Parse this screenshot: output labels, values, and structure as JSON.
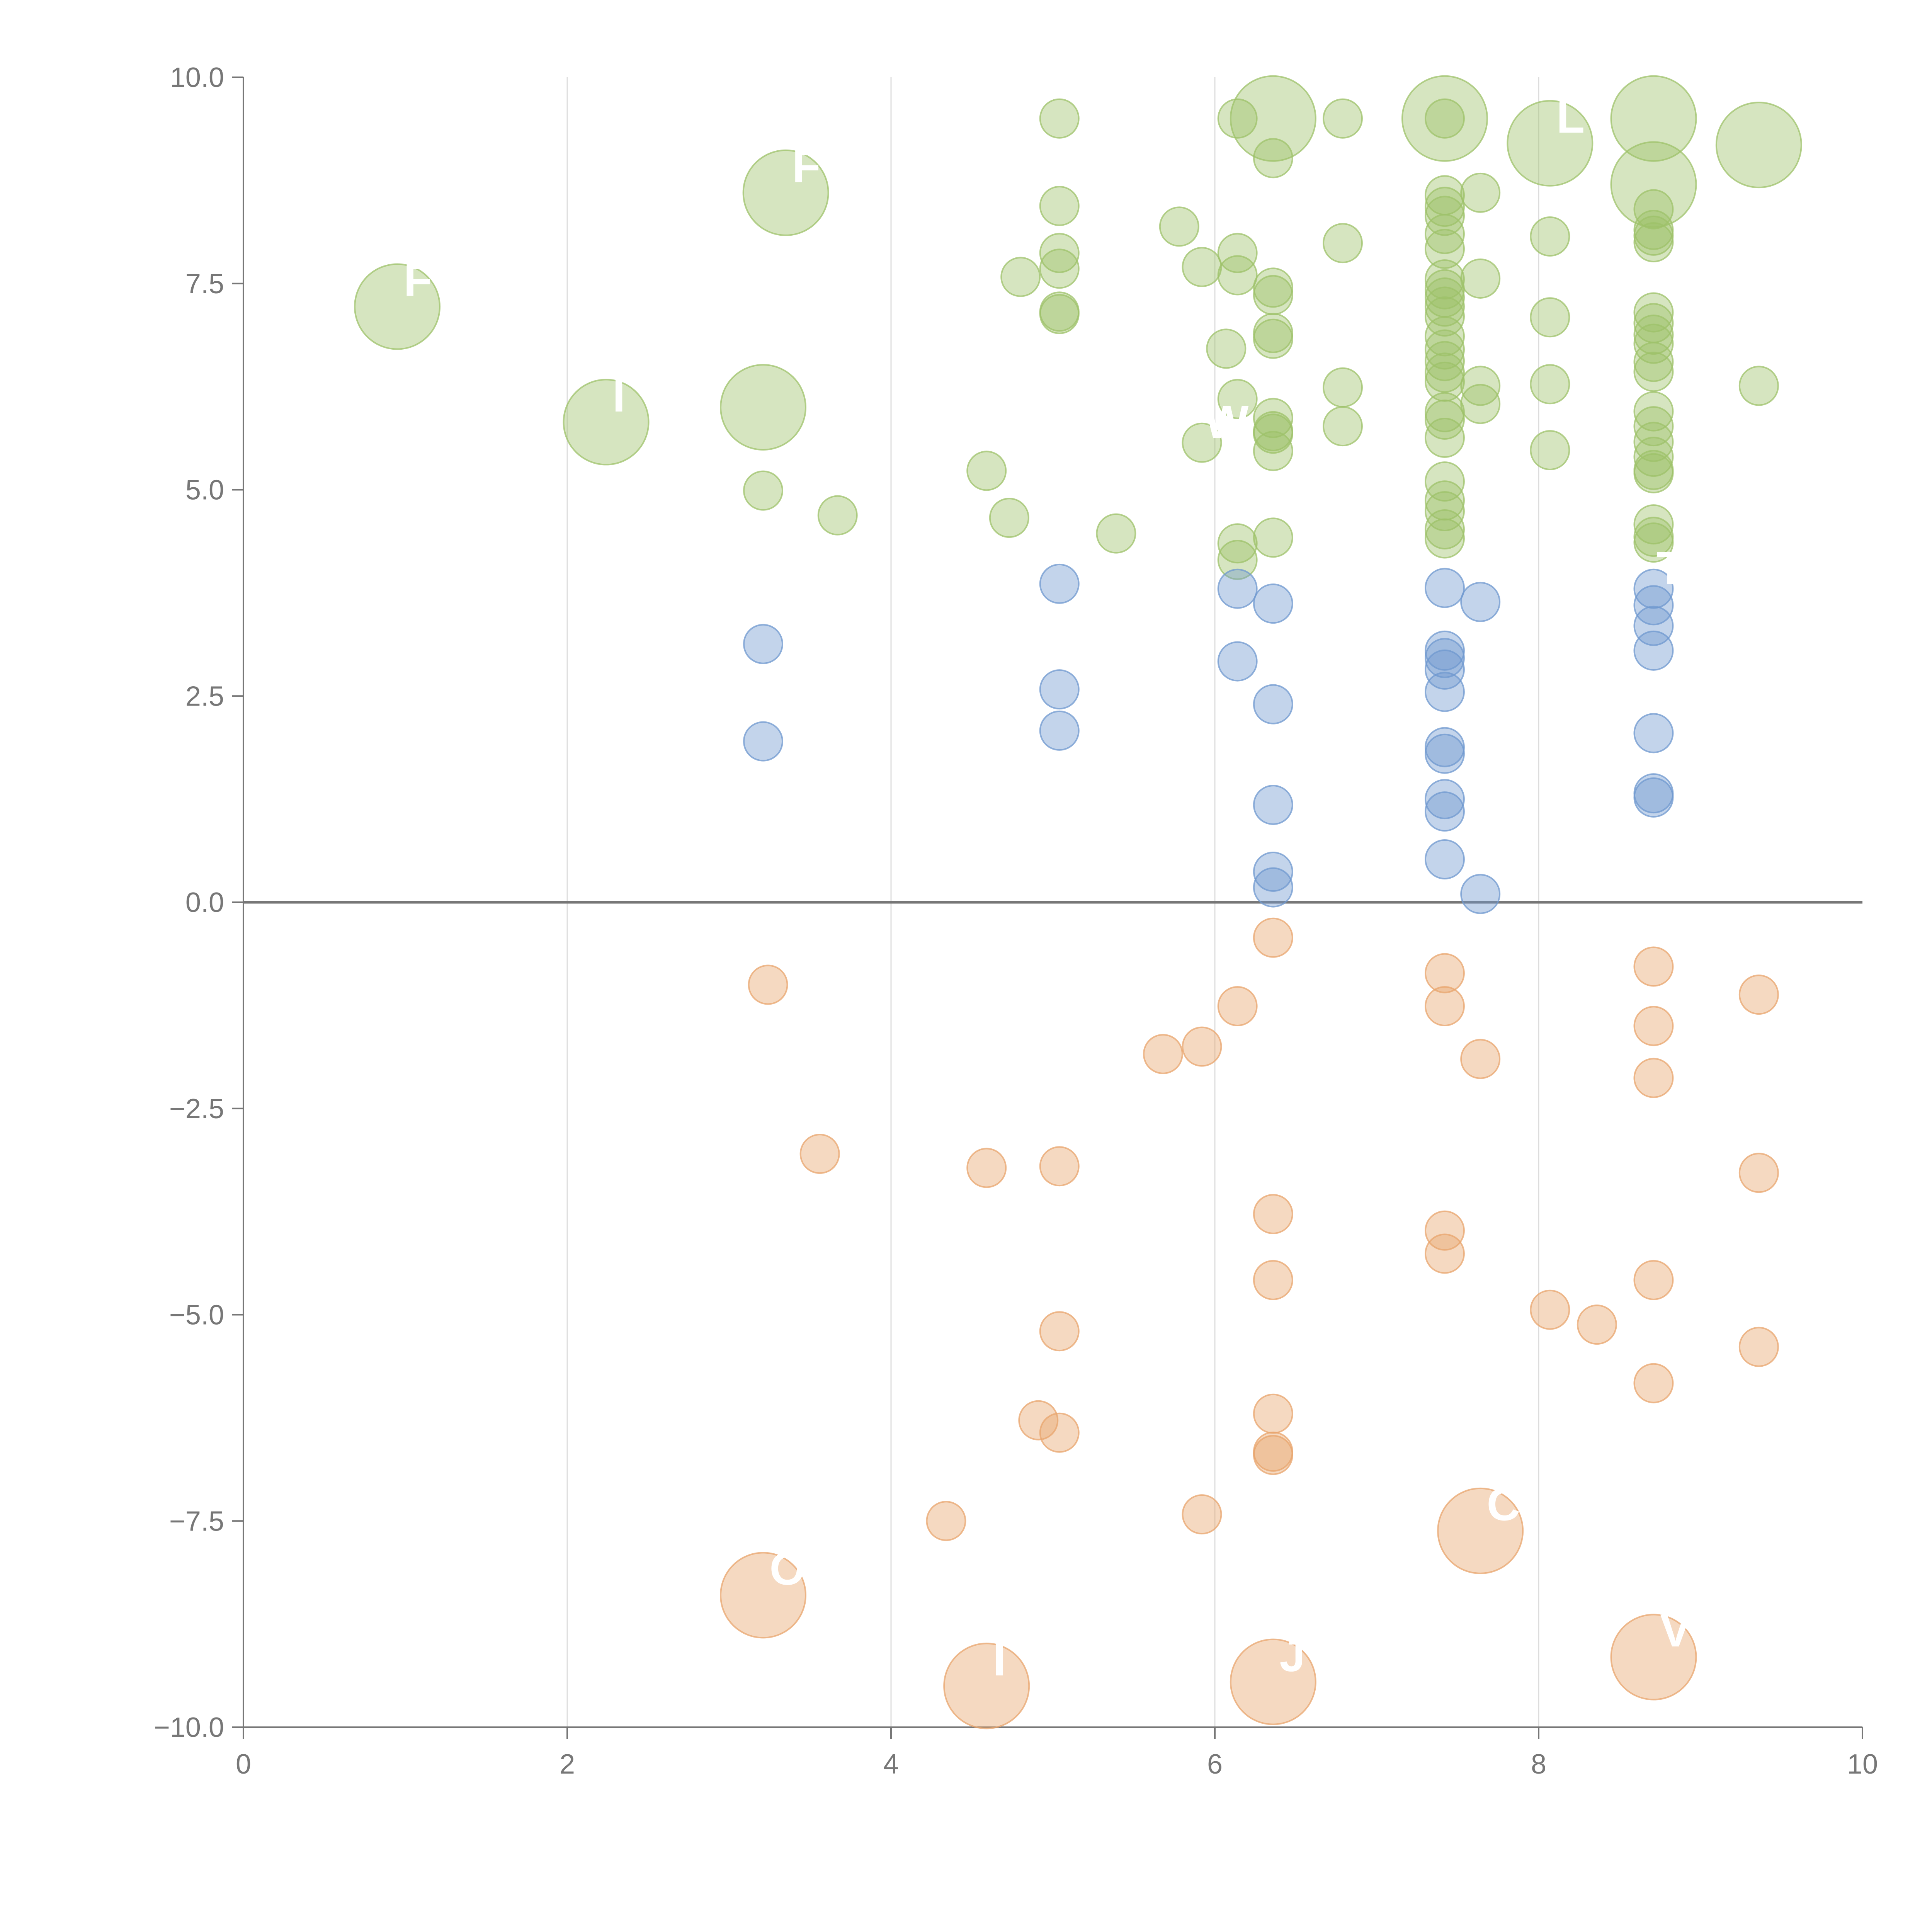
{
  "chart_data": {
    "type": "scatter",
    "title": "",
    "xlabel": "",
    "ylabel": "",
    "xlim": [
      0,
      10
    ],
    "ylim": [
      -10,
      10
    ],
    "x_ticks": [
      "0",
      "2",
      "4",
      "6",
      "8",
      "10"
    ],
    "y_ticks": [
      "10.0",
      "7.5",
      "5.0",
      "2.5",
      "0.0",
      "−2.5",
      "−5.0",
      "−7.5",
      "−10.0"
    ],
    "x_tick_values": [
      0,
      2,
      4,
      6,
      8,
      10
    ],
    "y_tick_values": [
      10,
      7.5,
      5,
      2.5,
      0,
      -2.5,
      -5,
      -7.5,
      -10
    ],
    "grid": "vertical",
    "reference_line_y": 0,
    "colors": {
      "green": "#9dc26a",
      "blue": "#6f98cf",
      "orange": "#e8a46c",
      "axis": "#777777",
      "grid": "#dddddd",
      "zero_line": "#777777"
    },
    "series": [
      {
        "color_key": "green",
        "points": [
          {
            "x": 0.95,
            "y": 7.22,
            "r": 2.2,
            "label": "F"
          },
          {
            "x": 2.24,
            "y": 5.82,
            "r": 2.2,
            "label": "I"
          },
          {
            "x": 3.21,
            "y": 6.0,
            "r": 2.2
          },
          {
            "x": 3.35,
            "y": 8.6,
            "r": 2.2,
            "label": "F"
          },
          {
            "x": 3.21,
            "y": 4.99
          },
          {
            "x": 3.67,
            "y": 4.69
          },
          {
            "x": 4.59,
            "y": 5.23
          },
          {
            "x": 4.73,
            "y": 4.66
          },
          {
            "x": 4.8,
            "y": 7.58
          },
          {
            "x": 5.04,
            "y": 9.5
          },
          {
            "x": 5.04,
            "y": 8.44
          },
          {
            "x": 5.04,
            "y": 7.87
          },
          {
            "x": 5.04,
            "y": 7.68
          },
          {
            "x": 5.04,
            "y": 7.16
          },
          {
            "x": 5.04,
            "y": 7.13
          },
          {
            "x": 5.39,
            "y": 4.47
          },
          {
            "x": 5.78,
            "y": 8.19
          },
          {
            "x": 5.92,
            "y": 7.7
          },
          {
            "x": 5.92,
            "y": 5.57,
            "label": "W"
          },
          {
            "x": 6.07,
            "y": 6.71
          },
          {
            "x": 6.14,
            "y": 7.87
          },
          {
            "x": 6.14,
            "y": 7.6
          },
          {
            "x": 6.14,
            "y": 6.1
          },
          {
            "x": 6.14,
            "y": 4.35
          },
          {
            "x": 6.14,
            "y": 4.15
          },
          {
            "x": 6.14,
            "y": 9.5
          },
          {
            "x": 6.36,
            "y": 9.5,
            "r": 2.2
          },
          {
            "x": 6.36,
            "y": 9.02
          },
          {
            "x": 6.36,
            "y": 7.45
          },
          {
            "x": 6.36,
            "y": 7.36
          },
          {
            "x": 6.36,
            "y": 6.9
          },
          {
            "x": 6.36,
            "y": 6.83
          },
          {
            "x": 6.36,
            "y": 5.87
          },
          {
            "x": 6.36,
            "y": 5.71
          },
          {
            "x": 6.36,
            "y": 5.68
          },
          {
            "x": 6.36,
            "y": 5.47
          },
          {
            "x": 6.36,
            "y": 4.42
          },
          {
            "x": 6.79,
            "y": 9.5
          },
          {
            "x": 6.79,
            "y": 7.99
          },
          {
            "x": 6.79,
            "y": 6.24
          },
          {
            "x": 6.79,
            "y": 5.77
          },
          {
            "x": 7.42,
            "y": 9.5,
            "r": 2.2
          },
          {
            "x": 7.42,
            "y": 9.5
          },
          {
            "x": 7.42,
            "y": 8.57
          },
          {
            "x": 7.42,
            "y": 8.43
          },
          {
            "x": 7.42,
            "y": 8.32
          },
          {
            "x": 7.42,
            "y": 8.1
          },
          {
            "x": 7.42,
            "y": 7.92
          },
          {
            "x": 7.42,
            "y": 7.55
          },
          {
            "x": 7.42,
            "y": 7.43
          },
          {
            "x": 7.42,
            "y": 7.33
          },
          {
            "x": 7.42,
            "y": 7.22
          },
          {
            "x": 7.42,
            "y": 7.1
          },
          {
            "x": 7.42,
            "y": 6.86
          },
          {
            "x": 7.42,
            "y": 6.7
          },
          {
            "x": 7.42,
            "y": 6.56
          },
          {
            "x": 7.42,
            "y": 6.42
          },
          {
            "x": 7.42,
            "y": 6.31
          },
          {
            "x": 7.42,
            "y": 5.94
          },
          {
            "x": 7.42,
            "y": 5.85
          },
          {
            "x": 7.42,
            "y": 5.63
          },
          {
            "x": 7.42,
            "y": 5.1
          },
          {
            "x": 7.42,
            "y": 4.87
          },
          {
            "x": 7.42,
            "y": 4.74
          },
          {
            "x": 7.42,
            "y": 4.52
          },
          {
            "x": 7.42,
            "y": 4.41
          },
          {
            "x": 7.64,
            "y": 8.6
          },
          {
            "x": 7.64,
            "y": 7.56
          },
          {
            "x": 7.64,
            "y": 6.26
          },
          {
            "x": 7.64,
            "y": 6.04
          },
          {
            "x": 8.07,
            "y": 9.2,
            "r": 2.2,
            "label": "L"
          },
          {
            "x": 8.07,
            "y": 8.07
          },
          {
            "x": 8.07,
            "y": 7.09
          },
          {
            "x": 8.07,
            "y": 6.28
          },
          {
            "x": 8.07,
            "y": 5.48
          },
          {
            "x": 8.71,
            "y": 9.5,
            "r": 2.2
          },
          {
            "x": 8.71,
            "y": 8.7,
            "r": 2.2
          },
          {
            "x": 8.71,
            "y": 8.4
          },
          {
            "x": 8.71,
            "y": 8.15
          },
          {
            "x": 8.71,
            "y": 8.08
          },
          {
            "x": 8.71,
            "y": 8.0
          },
          {
            "x": 8.71,
            "y": 7.15
          },
          {
            "x": 8.71,
            "y": 7.02
          },
          {
            "x": 8.71,
            "y": 6.88
          },
          {
            "x": 8.71,
            "y": 6.77
          },
          {
            "x": 8.71,
            "y": 6.55
          },
          {
            "x": 8.71,
            "y": 6.43
          },
          {
            "x": 8.71,
            "y": 5.95
          },
          {
            "x": 8.71,
            "y": 5.77
          },
          {
            "x": 8.71,
            "y": 5.58
          },
          {
            "x": 8.71,
            "y": 5.4
          },
          {
            "x": 8.71,
            "y": 5.24
          },
          {
            "x": 8.71,
            "y": 5.2
          },
          {
            "x": 8.71,
            "y": 4.58
          },
          {
            "x": 8.71,
            "y": 4.43
          },
          {
            "x": 8.71,
            "y": 4.36
          },
          {
            "x": 9.36,
            "y": 9.18,
            "r": 2.2
          },
          {
            "x": 9.36,
            "y": 6.26
          }
        ]
      },
      {
        "color_key": "blue",
        "points": [
          {
            "x": 3.21,
            "y": 3.13
          },
          {
            "x": 3.21,
            "y": 1.95
          },
          {
            "x": 5.04,
            "y": 3.86
          },
          {
            "x": 5.04,
            "y": 2.58
          },
          {
            "x": 5.04,
            "y": 2.08
          },
          {
            "x": 6.14,
            "y": 3.8
          },
          {
            "x": 6.14,
            "y": 2.92
          },
          {
            "x": 6.36,
            "y": 3.62
          },
          {
            "x": 6.36,
            "y": 2.4
          },
          {
            "x": 6.36,
            "y": 1.18
          },
          {
            "x": 6.36,
            "y": 0.37
          },
          {
            "x": 6.36,
            "y": 0.18
          },
          {
            "x": 7.42,
            "y": 3.81
          },
          {
            "x": 7.42,
            "y": 3.05
          },
          {
            "x": 7.42,
            "y": 2.96
          },
          {
            "x": 7.42,
            "y": 2.82
          },
          {
            "x": 7.42,
            "y": 2.55
          },
          {
            "x": 7.42,
            "y": 1.88
          },
          {
            "x": 7.42,
            "y": 1.8
          },
          {
            "x": 7.42,
            "y": 1.25
          },
          {
            "x": 7.42,
            "y": 1.1
          },
          {
            "x": 7.42,
            "y": 0.52
          },
          {
            "x": 7.64,
            "y": 3.64
          },
          {
            "x": 7.64,
            "y": 0.1
          },
          {
            "x": 8.71,
            "y": 3.8,
            "label": "T"
          },
          {
            "x": 8.71,
            "y": 3.6
          },
          {
            "x": 8.71,
            "y": 3.35
          },
          {
            "x": 8.71,
            "y": 3.05
          },
          {
            "x": 8.71,
            "y": 2.05
          },
          {
            "x": 8.71,
            "y": 1.32
          },
          {
            "x": 8.71,
            "y": 1.27
          }
        ]
      },
      {
        "color_key": "orange",
        "points": [
          {
            "x": 3.24,
            "y": -1.0
          },
          {
            "x": 3.56,
            "y": -3.05
          },
          {
            "x": 4.34,
            "y": -7.5
          },
          {
            "x": 4.59,
            "y": -3.22
          },
          {
            "x": 4.59,
            "y": -9.5,
            "r": 2.2,
            "label": "I"
          },
          {
            "x": 4.91,
            "y": -6.28
          },
          {
            "x": 5.04,
            "y": -3.2
          },
          {
            "x": 5.04,
            "y": -5.2
          },
          {
            "x": 5.04,
            "y": -6.43
          },
          {
            "x": 5.68,
            "y": -1.84
          },
          {
            "x": 5.92,
            "y": -1.75
          },
          {
            "x": 5.92,
            "y": -7.42
          },
          {
            "x": 6.14,
            "y": -1.26
          },
          {
            "x": 6.36,
            "y": -0.43
          },
          {
            "x": 6.36,
            "y": -3.78
          },
          {
            "x": 6.36,
            "y": -4.58
          },
          {
            "x": 6.36,
            "y": -6.2
          },
          {
            "x": 6.36,
            "y": -6.66
          },
          {
            "x": 6.36,
            "y": -6.7
          },
          {
            "x": 6.36,
            "y": -9.45,
            "r": 2.2,
            "label": "J"
          },
          {
            "x": 7.42,
            "y": -0.86
          },
          {
            "x": 7.42,
            "y": -1.26
          },
          {
            "x": 7.42,
            "y": -3.98
          },
          {
            "x": 7.42,
            "y": -4.26
          },
          {
            "x": 7.64,
            "y": -1.9
          },
          {
            "x": 7.64,
            "y": -7.62,
            "r": 2.2,
            "label": "C"
          },
          {
            "x": 8.07,
            "y": -4.94
          },
          {
            "x": 8.36,
            "y": -5.12
          },
          {
            "x": 8.71,
            "y": -0.78
          },
          {
            "x": 8.71,
            "y": -1.5
          },
          {
            "x": 8.71,
            "y": -2.13
          },
          {
            "x": 8.71,
            "y": -4.58
          },
          {
            "x": 8.71,
            "y": -5.83
          },
          {
            "x": 8.71,
            "y": -9.15,
            "r": 2.2,
            "label": "V"
          },
          {
            "x": 3.21,
            "y": -8.4,
            "r": 2.2,
            "label": "O"
          },
          {
            "x": 9.36,
            "y": -1.12
          },
          {
            "x": 9.36,
            "y": -3.28
          },
          {
            "x": 9.36,
            "y": -5.39
          }
        ]
      }
    ]
  }
}
